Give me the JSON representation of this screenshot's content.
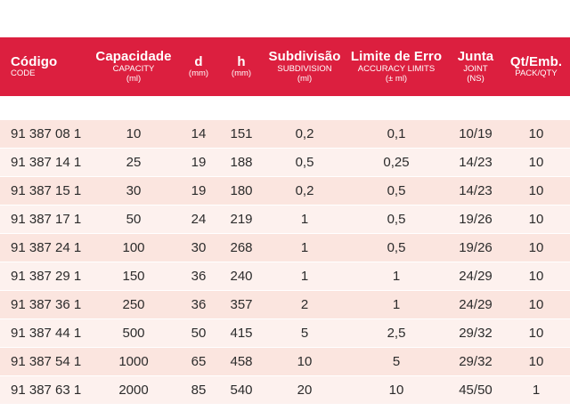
{
  "header": {
    "code": {
      "main": "Código",
      "sub": "CODE",
      "sub2": ""
    },
    "capacity": {
      "main": "Capacidade",
      "sub": "CAPACITY",
      "sub2": "(ml)"
    },
    "d": {
      "main": "d",
      "sub": "(mm)",
      "sub2": ""
    },
    "h": {
      "main": "h",
      "sub": "(mm)",
      "sub2": ""
    },
    "subdivision": {
      "main": "Subdivisão",
      "sub": "SUBDIVISION",
      "sub2": "(ml)"
    },
    "limit": {
      "main": "Limite de Erro",
      "sub": "ACCURACY LIMITS",
      "sub2": "(± ml)"
    },
    "joint": {
      "main": "Junta",
      "sub": "JOINT",
      "sub2": "(NS)"
    },
    "pack": {
      "main": "Qt/Emb.",
      "sub": "PACK/QTY",
      "sub2": ""
    }
  },
  "rows": [
    {
      "code": "91 387 08 1",
      "capacity": "10",
      "d": "14",
      "h": "151",
      "subdivision": "0,2",
      "limit": "0,1",
      "joint": "10/19",
      "pack": "10"
    },
    {
      "code": "91 387 14 1",
      "capacity": "25",
      "d": "19",
      "h": "188",
      "subdivision": "0,5",
      "limit": "0,25",
      "joint": "14/23",
      "pack": "10"
    },
    {
      "code": "91 387 15 1",
      "capacity": "30",
      "d": "19",
      "h": "180",
      "subdivision": "0,2",
      "limit": "0,5",
      "joint": "14/23",
      "pack": "10"
    },
    {
      "code": "91 387 17 1",
      "capacity": "50",
      "d": "24",
      "h": "219",
      "subdivision": "1",
      "limit": "0,5",
      "joint": "19/26",
      "pack": "10"
    },
    {
      "code": "91 387 24 1",
      "capacity": "100",
      "d": "30",
      "h": "268",
      "subdivision": "1",
      "limit": "0,5",
      "joint": "19/26",
      "pack": "10"
    },
    {
      "code": "91 387 29 1",
      "capacity": "150",
      "d": "36",
      "h": "240",
      "subdivision": "1",
      "limit": "1",
      "joint": "24/29",
      "pack": "10"
    },
    {
      "code": "91 387 36 1",
      "capacity": "250",
      "d": "36",
      "h": "357",
      "subdivision": "2",
      "limit": "1",
      "joint": "24/29",
      "pack": "10"
    },
    {
      "code": "91 387 44 1",
      "capacity": "500",
      "d": "50",
      "h": "415",
      "subdivision": "5",
      "limit": "2,5",
      "joint": "29/32",
      "pack": "10"
    },
    {
      "code": "91 387 54 1",
      "capacity": "1000",
      "d": "65",
      "h": "458",
      "subdivision": "10",
      "limit": "5",
      "joint": "29/32",
      "pack": "10"
    },
    {
      "code": "91 387 63 1",
      "capacity": "2000",
      "d": "85",
      "h": "540",
      "subdivision": "20",
      "limit": "10",
      "joint": "45/50",
      "pack": "1"
    }
  ],
  "colors": {
    "header_bg": "#dc1f3f",
    "row_odd": "#fbe5df",
    "row_even": "#fdf1ee"
  }
}
